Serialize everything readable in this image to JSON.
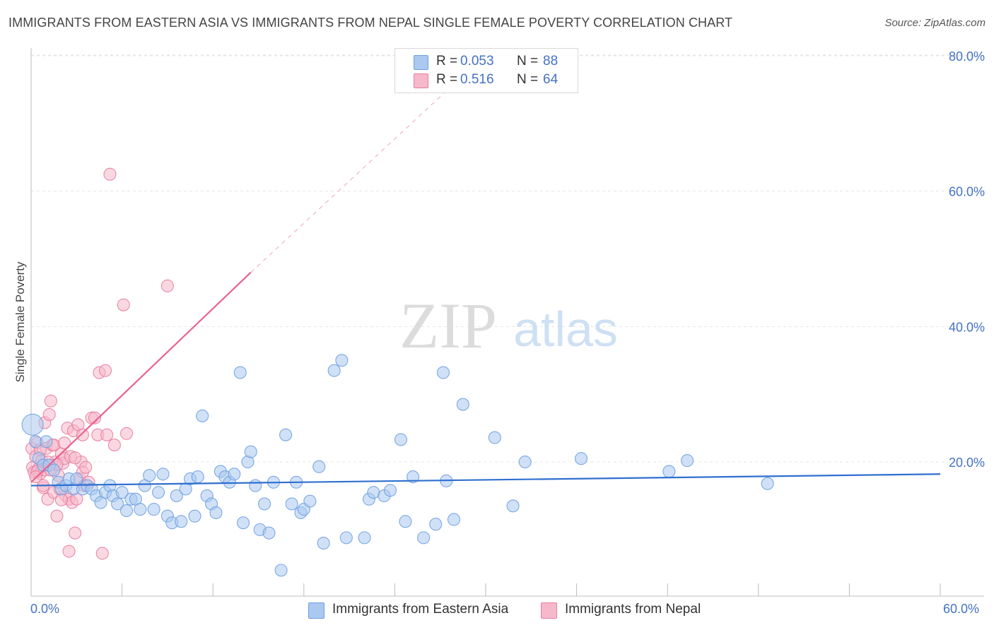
{
  "title": "IMMIGRANTS FROM EASTERN ASIA VS IMMIGRANTS FROM NEPAL SINGLE FEMALE POVERTY CORRELATION CHART",
  "source": "Source: ZipAtlas.com",
  "watermark": {
    "zip": "ZIP",
    "atlas": "atlas"
  },
  "colors": {
    "blue": "#6fa0e0",
    "blue_fill": "#aac8f0",
    "blue_line": "#2f6fcf",
    "pink": "#e87ea0",
    "pink_fill": "#f6b8cb",
    "pink_line": "#e8638f",
    "axis_text": "#4472c4",
    "grid": "#e4e4e4"
  },
  "legend": {
    "rows": [
      {
        "r_label": "R =",
        "r_value": "0.053",
        "n_label": "N =",
        "n_value": "88"
      },
      {
        "r_label": "R =",
        "r_value": "0.516",
        "n_label": "N =",
        "n_value": "64"
      }
    ]
  },
  "bottom_legend": {
    "series1": "Immigrants from Eastern Asia",
    "series2": "Immigrants from Nepal"
  },
  "chart_data": {
    "type": "scatter",
    "title": "IMMIGRANTS FROM EASTERN ASIA VS IMMIGRANTS FROM NEPAL SINGLE FEMALE POVERTY CORRELATION CHART",
    "xlabel": "",
    "ylabel": "Single Female Poverty",
    "xlim": [
      0,
      60
    ],
    "ylim": [
      0,
      85
    ],
    "x_tick_labels": [
      "0.0%",
      "60.0%"
    ],
    "y_ticks": [
      20,
      40,
      60,
      80
    ],
    "y_tick_labels": [
      "20.0%",
      "40.0%",
      "60.0%",
      "80.0%"
    ],
    "grid": true,
    "legend_position": "top-center",
    "series": [
      {
        "name": "Immigrants from Eastern Asia",
        "color": "#6fa0e0",
        "trend": {
          "x0": 0,
          "y0": 16.5,
          "x1": 60,
          "y1": 18.2
        },
        "points": [
          [
            0.1,
            25.5
          ],
          [
            0.3,
            23.0
          ],
          [
            0.5,
            20.5
          ],
          [
            0.8,
            19.5
          ],
          [
            1.0,
            23.0
          ],
          [
            1.2,
            19.5
          ],
          [
            1.5,
            18.8
          ],
          [
            1.8,
            17.0
          ],
          [
            2.0,
            16.0
          ],
          [
            2.3,
            16.5
          ],
          [
            2.5,
            17.5
          ],
          [
            2.8,
            16.0
          ],
          [
            3.0,
            17.5
          ],
          [
            3.4,
            16.0
          ],
          [
            3.7,
            16.5
          ],
          [
            4.0,
            16.0
          ],
          [
            4.3,
            15.0
          ],
          [
            4.6,
            14.0
          ],
          [
            4.9,
            15.5
          ],
          [
            5.2,
            16.5
          ],
          [
            5.4,
            15.0
          ],
          [
            5.7,
            13.8
          ],
          [
            6.0,
            15.5
          ],
          [
            6.3,
            12.8
          ],
          [
            6.6,
            14.5
          ],
          [
            6.9,
            14.5
          ],
          [
            7.2,
            13.0
          ],
          [
            7.5,
            16.5
          ],
          [
            7.8,
            18.0
          ],
          [
            8.1,
            13.0
          ],
          [
            8.4,
            15.5
          ],
          [
            8.7,
            18.2
          ],
          [
            9.0,
            12.0
          ],
          [
            9.3,
            11.0
          ],
          [
            9.6,
            15.0
          ],
          [
            9.9,
            11.2
          ],
          [
            10.2,
            16.0
          ],
          [
            10.5,
            17.5
          ],
          [
            10.8,
            12.0
          ],
          [
            11.0,
            17.8
          ],
          [
            11.3,
            26.8
          ],
          [
            11.6,
            15.0
          ],
          [
            11.9,
            13.8
          ],
          [
            12.2,
            12.5
          ],
          [
            12.5,
            18.6
          ],
          [
            12.8,
            17.8
          ],
          [
            13.1,
            17.0
          ],
          [
            13.4,
            18.2
          ],
          [
            13.8,
            33.2
          ],
          [
            14.0,
            11.0
          ],
          [
            14.3,
            20.0
          ],
          [
            14.5,
            21.5
          ],
          [
            14.8,
            16.5
          ],
          [
            15.1,
            10.0
          ],
          [
            15.4,
            13.8
          ],
          [
            15.7,
            9.5
          ],
          [
            16.0,
            17.0
          ],
          [
            16.5,
            4.0
          ],
          [
            16.8,
            24.0
          ],
          [
            17.2,
            13.8
          ],
          [
            17.5,
            17.0
          ],
          [
            17.8,
            12.5
          ],
          [
            18.0,
            13.0
          ],
          [
            18.4,
            14.2
          ],
          [
            19.0,
            19.3
          ],
          [
            19.3,
            8.0
          ],
          [
            20.0,
            33.5
          ],
          [
            20.5,
            35.0
          ],
          [
            20.8,
            8.8
          ],
          [
            22.0,
            8.8
          ],
          [
            22.3,
            14.5
          ],
          [
            22.6,
            15.5
          ],
          [
            23.3,
            15.0
          ],
          [
            23.7,
            15.8
          ],
          [
            24.4,
            23.3
          ],
          [
            24.7,
            11.2
          ],
          [
            25.2,
            17.8
          ],
          [
            25.9,
            8.8
          ],
          [
            26.7,
            10.8
          ],
          [
            27.2,
            33.2
          ],
          [
            27.4,
            17.2
          ],
          [
            27.9,
            11.5
          ],
          [
            28.5,
            28.5
          ],
          [
            30.6,
            23.6
          ],
          [
            31.8,
            13.5
          ],
          [
            32.6,
            20.0
          ],
          [
            36.3,
            20.5
          ],
          [
            42.1,
            18.6
          ],
          [
            43.3,
            20.2
          ],
          [
            48.6,
            16.8
          ]
        ]
      },
      {
        "name": "Immigrants from Nepal",
        "color": "#e87ea0",
        "trend": {
          "x0": 0,
          "y0": 17.0,
          "x1": 14.5,
          "y1": 48.0
        },
        "trend_dashed": {
          "x0": 14.5,
          "y0": 48.0,
          "x1": 27.5,
          "y1": 75.0
        },
        "points": [
          [
            0.05,
            22.0
          ],
          [
            0.1,
            19.2
          ],
          [
            0.2,
            18.5
          ],
          [
            0.3,
            20.8
          ],
          [
            0.4,
            22.8
          ],
          [
            0.5,
            19.0
          ],
          [
            0.6,
            18.3
          ],
          [
            0.7,
            20.2
          ],
          [
            0.8,
            16.2
          ],
          [
            0.9,
            25.8
          ],
          [
            1.0,
            22.0
          ],
          [
            1.1,
            14.5
          ],
          [
            1.2,
            27.0
          ],
          [
            1.3,
            29.0
          ],
          [
            1.4,
            22.5
          ],
          [
            1.5,
            15.5
          ],
          [
            1.6,
            20.0
          ],
          [
            1.7,
            12.0
          ],
          [
            1.8,
            18.0
          ],
          [
            1.9,
            16.0
          ],
          [
            2.0,
            21.2
          ],
          [
            2.1,
            19.8
          ],
          [
            2.2,
            20.5
          ],
          [
            2.3,
            15.0
          ],
          [
            2.4,
            25.0
          ],
          [
            2.5,
            14.5
          ],
          [
            2.6,
            20.8
          ],
          [
            2.7,
            14.0
          ],
          [
            2.8,
            24.6
          ],
          [
            2.9,
            9.5
          ],
          [
            3.0,
            14.5
          ],
          [
            3.1,
            25.5
          ],
          [
            3.2,
            17.5
          ],
          [
            3.3,
            20.0
          ],
          [
            3.4,
            18.5
          ],
          [
            3.5,
            16.5
          ],
          [
            3.6,
            19.2
          ],
          [
            3.8,
            17.0
          ],
          [
            4.0,
            26.5
          ],
          [
            4.2,
            26.5
          ],
          [
            4.4,
            24.0
          ],
          [
            4.5,
            33.2
          ],
          [
            4.7,
            6.5
          ],
          [
            4.9,
            33.5
          ],
          [
            5.0,
            24.0
          ],
          [
            5.2,
            62.5
          ],
          [
            5.5,
            22.5
          ],
          [
            6.1,
            43.2
          ],
          [
            6.3,
            24.2
          ],
          [
            9.0,
            46.0
          ],
          [
            2.5,
            6.8
          ],
          [
            0.9,
            18.8
          ],
          [
            1.5,
            22.5
          ],
          [
            0.4,
            18.6
          ],
          [
            0.8,
            16.5
          ],
          [
            1.1,
            20.0
          ],
          [
            0.6,
            21.8
          ],
          [
            1.3,
            18.8
          ],
          [
            2.2,
            22.8
          ],
          [
            2.9,
            20.6
          ],
          [
            0.3,
            17.8
          ],
          [
            3.4,
            24.0
          ],
          [
            2.0,
            14.4
          ],
          [
            1.7,
            19.6
          ]
        ]
      }
    ]
  }
}
